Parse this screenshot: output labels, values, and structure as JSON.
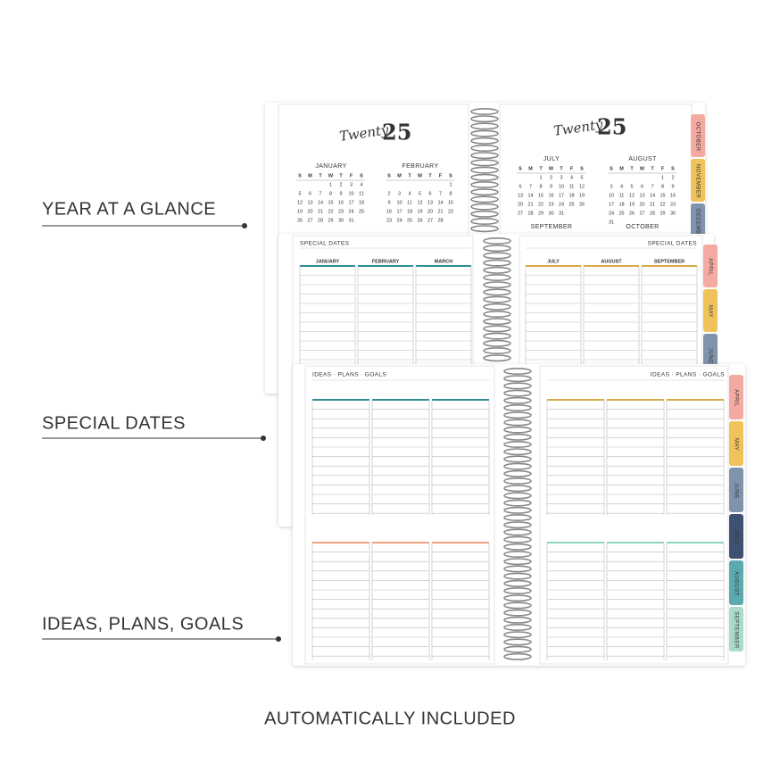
{
  "callouts": [
    "YEAR AT A GLANCE",
    "SPECIAL DATES",
    "IDEAS, PLANS, GOALS"
  ],
  "footer": "AUTOMATICALLY INCLUDED",
  "year_spread": {
    "script": "Twenty",
    "year": "25",
    "weekdays": [
      "S",
      "M",
      "T",
      "W",
      "T",
      "F",
      "S"
    ],
    "months": [
      {
        "name": "JANUARY",
        "weeks": [
          [
            null,
            null,
            null,
            1,
            2,
            3,
            4
          ],
          [
            5,
            6,
            7,
            8,
            9,
            10,
            11
          ],
          [
            12,
            13,
            14,
            15,
            16,
            17,
            18
          ],
          [
            19,
            20,
            21,
            22,
            23,
            24,
            25
          ],
          [
            26,
            27,
            28,
            29,
            30,
            31,
            null
          ]
        ]
      },
      {
        "name": "FEBRUARY",
        "weeks": [
          [
            null,
            null,
            null,
            null,
            null,
            null,
            1
          ],
          [
            2,
            3,
            4,
            5,
            6,
            7,
            8
          ],
          [
            9,
            10,
            11,
            12,
            13,
            14,
            15
          ],
          [
            16,
            17,
            18,
            19,
            20,
            21,
            22
          ],
          [
            23,
            24,
            25,
            26,
            27,
            28,
            null
          ]
        ]
      },
      {
        "name": "JULY",
        "weeks": [
          [
            null,
            null,
            1,
            2,
            3,
            4,
            5
          ],
          [
            6,
            7,
            8,
            9,
            10,
            11,
            12
          ],
          [
            13,
            14,
            15,
            16,
            17,
            18,
            19
          ],
          [
            20,
            21,
            22,
            23,
            24,
            25,
            26
          ],
          [
            27,
            28,
            29,
            30,
            31,
            null,
            null
          ]
        ]
      },
      {
        "name": "AUGUST",
        "weeks": [
          [
            null,
            null,
            null,
            null,
            null,
            1,
            2
          ],
          [
            3,
            4,
            5,
            6,
            7,
            8,
            9
          ],
          [
            10,
            11,
            12,
            13,
            14,
            15,
            16
          ],
          [
            17,
            18,
            19,
            20,
            21,
            22,
            23
          ],
          [
            24,
            25,
            26,
            27,
            28,
            29,
            30
          ],
          [
            31,
            null,
            null,
            null,
            null,
            null,
            null
          ]
        ]
      }
    ],
    "next_months": [
      "SEPTEMBER",
      "OCTOBER"
    ],
    "tabs": [
      "OCTOBER",
      "NOVEMBER",
      "DECEMBER"
    ]
  },
  "special_dates": {
    "title": "SPECIAL DATES",
    "left_months": [
      "JANUARY",
      "FEBRUARY",
      "MARCH"
    ],
    "right_months": [
      "JULY",
      "AUGUST",
      "SEPTEMBER"
    ],
    "tabs": [
      "APRIL",
      "MAY",
      "JUNE"
    ]
  },
  "ideas": {
    "title": "IDEAS · PLANS · GOALS",
    "tabs": [
      "APRIL",
      "MAY",
      "JUNE",
      "JULY",
      "AUGUST",
      "SEPTEMBER"
    ]
  }
}
